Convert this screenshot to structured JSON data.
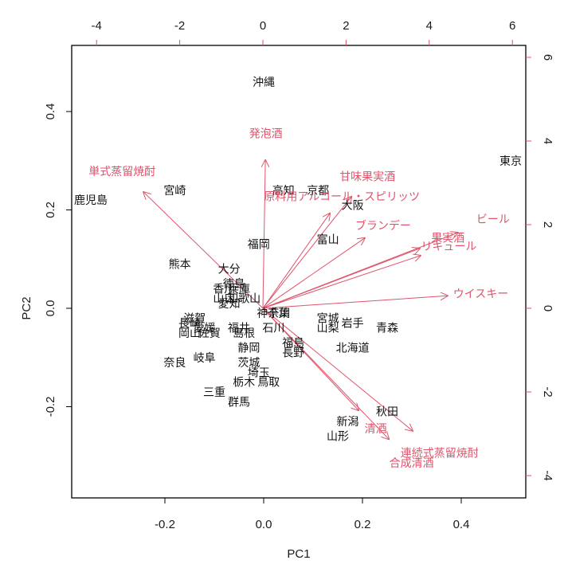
{
  "chart_data": {
    "type": "scatter",
    "subtype": "pca-biplot",
    "title": "",
    "xlabel": "PC1",
    "ylabel": "PC2",
    "xlim": [
      -0.38,
      0.53
    ],
    "ylim": [
      -0.38,
      0.53
    ],
    "x_ticks": [
      "-0.2",
      "0.0",
      "0.2",
      "0.4"
    ],
    "y_ticks": [
      "-0.2",
      "0.0",
      "0.2",
      "0.4"
    ],
    "top_axis_ticks": [
      "-4",
      "-2",
      "0",
      "2",
      "4",
      "6"
    ],
    "right_axis_ticks": [
      "-4",
      "-2",
      "0",
      "2",
      "4",
      "6"
    ],
    "grid": false,
    "legend": null,
    "colors": {
      "points": "#000000",
      "loadings": "#DF536B",
      "frame": "#000000"
    },
    "scores": [
      {
        "label": "沖縄",
        "x": 0.0,
        "y": 0.46
      },
      {
        "label": "東京",
        "x": 0.5,
        "y": 0.3
      },
      {
        "label": "鹿児島",
        "x": -0.35,
        "y": 0.22
      },
      {
        "label": "宮崎",
        "x": -0.18,
        "y": 0.24
      },
      {
        "label": "高知",
        "x": 0.04,
        "y": 0.24
      },
      {
        "label": "京都",
        "x": 0.11,
        "y": 0.24
      },
      {
        "label": "大阪",
        "x": 0.18,
        "y": 0.21
      },
      {
        "label": "富山",
        "x": 0.13,
        "y": 0.14
      },
      {
        "label": "福岡",
        "x": -0.01,
        "y": 0.13
      },
      {
        "label": "熊本",
        "x": -0.17,
        "y": 0.09
      },
      {
        "label": "大分",
        "x": -0.07,
        "y": 0.08
      },
      {
        "label": "徳島",
        "x": -0.06,
        "y": 0.05
      },
      {
        "label": "兵庫",
        "x": -0.05,
        "y": 0.04
      },
      {
        "label": "香川",
        "x": -0.08,
        "y": 0.04
      },
      {
        "label": "山口",
        "x": -0.08,
        "y": 0.02
      },
      {
        "label": "和歌山",
        "x": -0.04,
        "y": 0.02
      },
      {
        "label": "愛知",
        "x": -0.07,
        "y": 0.01
      },
      {
        "label": "神奈川",
        "x": 0.02,
        "y": -0.01
      },
      {
        "label": "千葉",
        "x": 0.03,
        "y": -0.01
      },
      {
        "label": "石川",
        "x": 0.02,
        "y": -0.04
      },
      {
        "label": "滋賀",
        "x": -0.14,
        "y": -0.02
      },
      {
        "label": "長崎",
        "x": -0.15,
        "y": -0.03
      },
      {
        "label": "愛媛",
        "x": -0.12,
        "y": -0.04
      },
      {
        "label": "岡山",
        "x": -0.15,
        "y": -0.05
      },
      {
        "label": "佐賀",
        "x": -0.11,
        "y": -0.05
      },
      {
        "label": "福井",
        "x": -0.05,
        "y": -0.04
      },
      {
        "label": "島根",
        "x": -0.04,
        "y": -0.05
      },
      {
        "label": "宮城",
        "x": 0.13,
        "y": -0.02
      },
      {
        "label": "山梨",
        "x": 0.13,
        "y": -0.04
      },
      {
        "label": "岩手",
        "x": 0.18,
        "y": -0.03
      },
      {
        "label": "青森",
        "x": 0.25,
        "y": -0.04
      },
      {
        "label": "北海道",
        "x": 0.18,
        "y": -0.08
      },
      {
        "label": "福島",
        "x": 0.06,
        "y": -0.07
      },
      {
        "label": "長野",
        "x": 0.06,
        "y": -0.09
      },
      {
        "label": "静岡",
        "x": -0.03,
        "y": -0.08
      },
      {
        "label": "茨城",
        "x": -0.03,
        "y": -0.11
      },
      {
        "label": "埼玉",
        "x": -0.01,
        "y": -0.13
      },
      {
        "label": "栃木",
        "x": -0.04,
        "y": -0.15
      },
      {
        "label": "鳥取",
        "x": 0.01,
        "y": -0.15
      },
      {
        "label": "奈良",
        "x": -0.18,
        "y": -0.11
      },
      {
        "label": "岐阜",
        "x": -0.12,
        "y": -0.1
      },
      {
        "label": "三重",
        "x": -0.1,
        "y": -0.17
      },
      {
        "label": "群馬",
        "x": -0.05,
        "y": -0.19
      },
      {
        "label": "秋田",
        "x": 0.25,
        "y": -0.21
      },
      {
        "label": "新潟",
        "x": 0.17,
        "y": -0.23
      },
      {
        "label": "山形",
        "x": 0.15,
        "y": -0.26
      }
    ],
    "loadings": [
      {
        "label": "単式蒸留焼酎",
        "x": -2.87,
        "y": 2.78
      },
      {
        "label": "発泡酒",
        "x": 0.06,
        "y": 3.54
      },
      {
        "label": "原料用アルコール・スピリッツ",
        "x": 1.61,
        "y": 2.27
      },
      {
        "label": "甘味果実酒",
        "x": 2.13,
        "y": 2.67
      },
      {
        "label": "ブランデー",
        "x": 2.45,
        "y": 1.68
      },
      {
        "label": "ビール",
        "x": 4.69,
        "y": 1.81
      },
      {
        "label": "果実酒",
        "x": 3.77,
        "y": 1.43
      },
      {
        "label": "リキュール",
        "x": 3.79,
        "y": 1.26
      },
      {
        "label": "ウイスキー",
        "x": 4.44,
        "y": 0.3
      },
      {
        "label": "清酒",
        "x": 2.3,
        "y": -2.44
      },
      {
        "label": "合成清酒",
        "x": 3.03,
        "y": -3.13
      },
      {
        "label": "連続式蒸留焼酎",
        "x": 3.6,
        "y": -2.93
      }
    ]
  }
}
